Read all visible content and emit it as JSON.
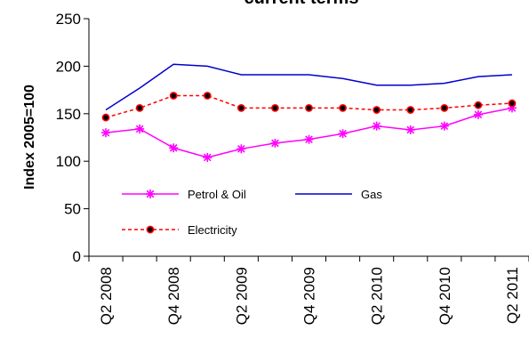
{
  "chart_data": {
    "type": "line",
    "title": "current terms",
    "xlabel": "",
    "ylabel": "Index 2005=100",
    "ylim": [
      0,
      250
    ],
    "yticks": [
      "0",
      "50",
      "100",
      "150",
      "200",
      "250"
    ],
    "grid": false,
    "legend_position": "lower-left inside plot",
    "categories": [
      "Q2 2008",
      "Q3 2008",
      "Q4 2008",
      "Q1 2009",
      "Q2 2009",
      "Q3 2009",
      "Q4 2009",
      "Q1 2010",
      "Q2 2010",
      "Q3 2010",
      "Q4 2010",
      "Q1 2011",
      "Q2 2011"
    ],
    "xtick_labels": [
      "Q2 2008",
      "",
      "Q4 2008",
      "",
      "Q2 2009",
      "",
      "Q4 2009",
      "",
      "Q2 2010",
      "",
      "Q4 2010",
      "",
      "Q2 2011"
    ],
    "series": [
      {
        "name": "Petrol & Oil",
        "color": "#ff00ff",
        "marker": "asterisk",
        "line_style": "solid",
        "values": [
          130,
          134,
          114,
          104,
          113,
          119,
          123,
          129,
          137,
          133,
          137,
          149,
          156
        ]
      },
      {
        "name": "Gas",
        "color": "#0000cc",
        "marker": "none",
        "line_style": "solid",
        "values": [
          154,
          177,
          202,
          200,
          191,
          191,
          191,
          187,
          180,
          180,
          182,
          189,
          191
        ]
      },
      {
        "name": "Electricity",
        "color": "#ff0000",
        "marker": "circle",
        "line_style": "dashed",
        "values": [
          146,
          156,
          169,
          169,
          156,
          156,
          156,
          156,
          154,
          154,
          156,
          159,
          161
        ]
      }
    ]
  }
}
